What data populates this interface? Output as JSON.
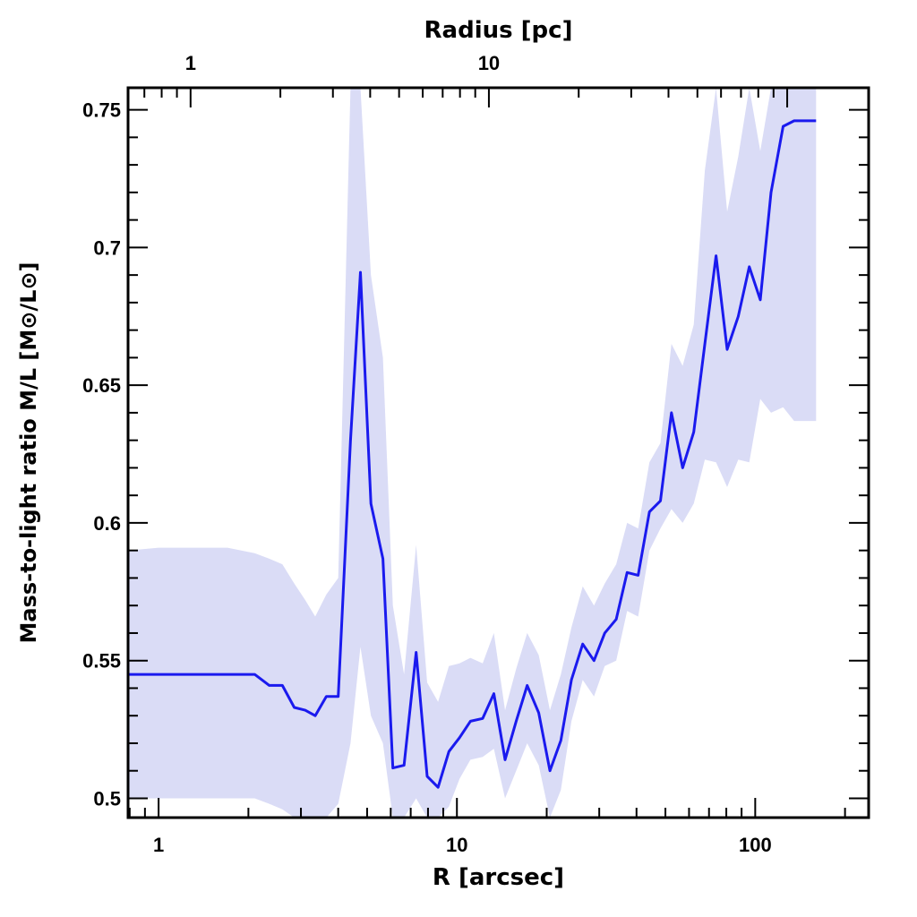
{
  "chart_data": {
    "type": "line",
    "x_scale": "log",
    "xlabel": "R [arcsec]",
    "x2label": "Radius [pc]",
    "ylabel": "Mass-to-light ratio M/L [M⊙/L⊙]",
    "xlim": [
      0.79,
      240
    ],
    "ylim": [
      0.493,
      0.758
    ],
    "x_ticks": [
      {
        "value": 1,
        "label": "1"
      },
      {
        "value": 10,
        "label": "10"
      },
      {
        "value": 100,
        "label": "100"
      }
    ],
    "x2_ticks": [
      {
        "value": 1.28,
        "label": "1"
      },
      {
        "value": 12.8,
        "label": "10"
      }
    ],
    "y_ticks": [
      {
        "value": 0.5,
        "label": "0.5"
      },
      {
        "value": 0.55,
        "label": "0.55"
      },
      {
        "value": 0.6,
        "label": "0.6"
      },
      {
        "value": 0.65,
        "label": "0.65"
      },
      {
        "value": 0.7,
        "label": "0.7"
      },
      {
        "value": 0.75,
        "label": "0.75"
      }
    ],
    "grid": false,
    "colors": {
      "line": "#1a1aee",
      "band": "#dadcf6",
      "axes": "#000000"
    },
    "series": [
      {
        "x": [
          0.79,
          1.0,
          1.3,
          1.7,
          2.1,
          2.35,
          2.6,
          2.85,
          3.1,
          3.35,
          3.65,
          4.0,
          4.4,
          4.75,
          5.15,
          5.65,
          6.1,
          6.65,
          7.3,
          7.95,
          8.65,
          9.4,
          10.2,
          11.1,
          12.2,
          13.3,
          14.5,
          15.8,
          17.2,
          18.8,
          20.5,
          22.3,
          24.2,
          26.4,
          28.8,
          31.3,
          34.2,
          37.2,
          40.5,
          44.2,
          48.1,
          52.4,
          57.1,
          62.2,
          67.8,
          73.9,
          80.5,
          87.7,
          95.5,
          104,
          113,
          124,
          135,
          147,
          160
        ],
        "y": [
          0.545,
          0.545,
          0.545,
          0.545,
          0.545,
          0.541,
          0.541,
          0.533,
          0.532,
          0.53,
          0.537,
          0.537,
          0.63,
          0.691,
          0.607,
          0.587,
          0.511,
          0.512,
          0.553,
          0.508,
          0.504,
          0.517,
          0.522,
          0.528,
          0.529,
          0.538,
          0.514,
          0.528,
          0.541,
          0.531,
          0.51,
          0.521,
          0.543,
          0.556,
          0.55,
          0.56,
          0.565,
          0.582,
          0.581,
          0.604,
          0.608,
          0.64,
          0.62,
          0.633,
          0.665,
          0.697,
          0.663,
          0.675,
          0.693,
          0.681,
          0.72,
          0.744,
          0.746,
          0.746,
          0.746
        ],
        "lower": [
          0.5,
          0.5,
          0.5,
          0.5,
          0.5,
          0.498,
          0.496,
          0.492,
          0.49,
          0.489,
          0.491,
          0.498,
          0.52,
          0.555,
          0.53,
          0.52,
          0.48,
          0.478,
          0.5,
          0.484,
          0.483,
          0.497,
          0.507,
          0.514,
          0.515,
          0.518,
          0.5,
          0.51,
          0.52,
          0.512,
          0.49,
          0.503,
          0.528,
          0.543,
          0.537,
          0.548,
          0.55,
          0.568,
          0.566,
          0.59,
          0.598,
          0.605,
          0.6,
          0.607,
          0.623,
          0.622,
          0.613,
          0.623,
          0.622,
          0.645,
          0.64,
          0.642,
          0.637,
          0.637,
          0.637
        ],
        "upper": [
          0.59,
          0.591,
          0.591,
          0.591,
          0.589,
          0.587,
          0.585,
          0.578,
          0.572,
          0.566,
          0.574,
          0.58,
          0.76,
          0.76,
          0.69,
          0.66,
          0.57,
          0.545,
          0.592,
          0.542,
          0.535,
          0.548,
          0.549,
          0.551,
          0.549,
          0.56,
          0.532,
          0.547,
          0.56,
          0.552,
          0.532,
          0.545,
          0.562,
          0.577,
          0.57,
          0.578,
          0.585,
          0.6,
          0.598,
          0.622,
          0.629,
          0.665,
          0.657,
          0.672,
          0.728,
          0.76,
          0.713,
          0.733,
          0.76,
          0.735,
          0.76,
          0.76,
          0.76,
          0.76,
          0.76
        ]
      }
    ]
  }
}
